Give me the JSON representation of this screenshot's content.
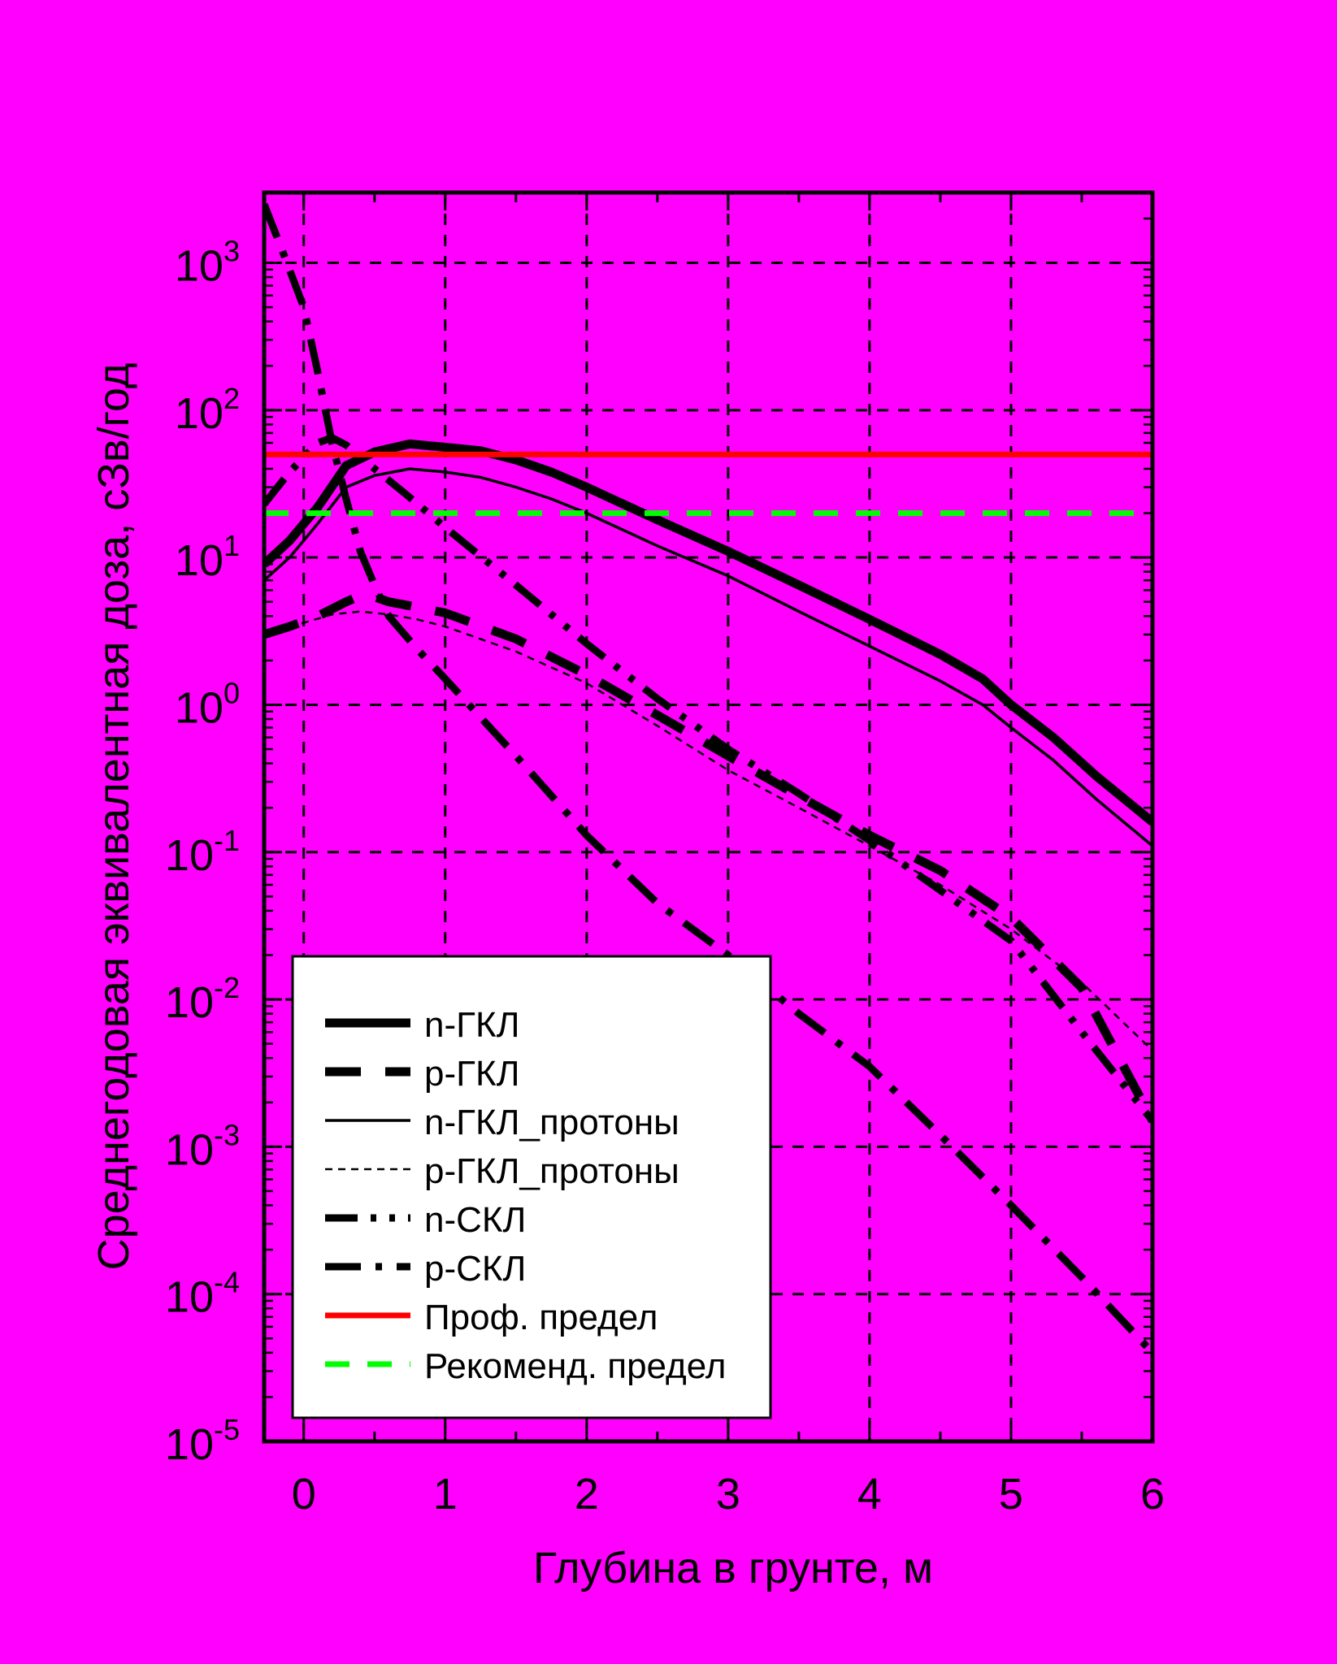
{
  "chart_data": {
    "type": "line",
    "xlabel": "Глубина в грунте, м",
    "ylabel": "Среднегодовая эквивалентная доза, сЗв/год",
    "xlim": [
      -0.28,
      6.0
    ],
    "ylim": [
      1e-05,
      3000
    ],
    "y_scale": "log",
    "x_ticks": [
      0,
      1,
      2,
      3,
      4,
      5,
      6
    ],
    "y_ticks": [
      {
        "value": 1e-05,
        "base": "10",
        "exp": "-5"
      },
      {
        "value": 0.0001,
        "base": "10",
        "exp": "-4"
      },
      {
        "value": 0.001,
        "base": "10",
        "exp": "-3"
      },
      {
        "value": 0.01,
        "base": "10",
        "exp": "-2"
      },
      {
        "value": 0.1,
        "base": "10",
        "exp": "-1"
      },
      {
        "value": 1,
        "base": "10",
        "exp": "0"
      },
      {
        "value": 10,
        "base": "10",
        "exp": "1"
      },
      {
        "value": 100,
        "base": "10",
        "exp": "2"
      },
      {
        "value": 1000,
        "base": "10",
        "exp": "3"
      }
    ],
    "grid": true,
    "legend_position": "bottom-left",
    "colors": {
      "background": "#FF00FF",
      "page": "#000000",
      "line": "#000000",
      "prof_limit": "#FF0000",
      "rec_limit": "#00FF00",
      "legend_bg": "#FFFFFF"
    },
    "series": [
      {
        "name": "n-ГКЛ",
        "style": "solid-thick",
        "color": "#000000",
        "x": [
          -0.28,
          -0.1,
          0.1,
          0.3,
          0.5,
          0.75,
          1.0,
          1.25,
          1.5,
          1.75,
          2.0,
          2.5,
          3.0,
          3.5,
          4.0,
          4.5,
          4.8,
          5.0,
          5.3,
          5.6,
          6.0
        ],
        "y": [
          9,
          13,
          22,
          42,
          52,
          59,
          56,
          53,
          46,
          38,
          30,
          18,
          11,
          6.5,
          3.8,
          2.2,
          1.5,
          1.0,
          0.6,
          0.33,
          0.16
        ]
      },
      {
        "name": "p-ГКЛ",
        "style": "dashed-thick",
        "color": "#000000",
        "x": [
          -0.28,
          -0.1,
          0.1,
          0.3,
          0.4,
          0.5,
          0.6,
          0.8,
          1.0,
          1.5,
          2.0,
          2.5,
          3.0,
          3.5,
          4.0,
          4.5,
          5.0,
          5.5,
          6.0
        ],
        "y": [
          3.0,
          3.4,
          4.0,
          5.0,
          5.5,
          5.4,
          5.0,
          4.6,
          4.2,
          2.8,
          1.6,
          0.85,
          0.45,
          0.24,
          0.13,
          0.075,
          0.036,
          0.012,
          0.0015
        ]
      },
      {
        "name": "n-ГКЛ_протоны",
        "style": "solid-thin",
        "color": "#000000",
        "x": [
          -0.28,
          -0.1,
          0.1,
          0.3,
          0.5,
          0.75,
          1.0,
          1.25,
          1.5,
          1.75,
          2.0,
          2.5,
          3.0,
          3.5,
          4.0,
          4.5,
          4.8,
          5.0,
          5.3,
          5.6,
          6.0
        ],
        "y": [
          7,
          10,
          17,
          30,
          36,
          40,
          38,
          35,
          30,
          25,
          20,
          12,
          7.5,
          4.3,
          2.5,
          1.45,
          1.0,
          0.7,
          0.42,
          0.23,
          0.11
        ]
      },
      {
        "name": "p-ГКЛ_протоны",
        "style": "dotted-thin",
        "color": "#000000",
        "x": [
          -0.28,
          0.0,
          0.2,
          0.4,
          0.6,
          0.8,
          1.0,
          1.5,
          2.0,
          2.5,
          3.0,
          3.5,
          4.0,
          4.5,
          5.0,
          5.5,
          6.0
        ],
        "y": [
          3.0,
          3.6,
          4.1,
          4.3,
          4.1,
          3.8,
          3.4,
          2.3,
          1.4,
          0.72,
          0.36,
          0.2,
          0.11,
          0.06,
          0.03,
          0.013,
          0.0045
        ]
      },
      {
        "name": "n-СКЛ",
        "style": "dash-dot-dot-thick",
        "color": "#000000",
        "x": [
          -0.28,
          -0.1,
          0.1,
          0.2,
          0.3,
          0.5,
          0.7,
          1.0,
          1.5,
          2.0,
          2.5,
          3.0,
          3.5,
          4.0,
          4.5,
          5.0,
          5.5,
          6.0
        ],
        "y": [
          23,
          38,
          60,
          65,
          58,
          40,
          28,
          16,
          6.5,
          2.6,
          1.1,
          0.5,
          0.25,
          0.12,
          0.055,
          0.025,
          0.006,
          0.0015
        ]
      },
      {
        "name": "p-СКЛ",
        "style": "dash-dot-thick",
        "color": "#000000",
        "x": [
          -0.28,
          -0.15,
          0.0,
          0.1,
          0.2,
          0.3,
          0.4,
          0.5,
          0.6,
          0.8,
          1.0,
          1.5,
          2.0,
          2.5,
          3.0,
          3.5,
          4.0,
          4.5,
          5.0,
          5.5,
          6.0
        ],
        "y": [
          2500,
          1200,
          500,
          180,
          60,
          25,
          11,
          6.5,
          4.0,
          2.4,
          1.5,
          0.45,
          0.13,
          0.045,
          0.02,
          0.008,
          0.0035,
          0.0012,
          0.0004,
          0.00013,
          4e-05
        ]
      },
      {
        "name": "Проф. предел",
        "style": "solid-red",
        "color": "#FF0000",
        "x": [
          -0.28,
          6.0
        ],
        "y": [
          50,
          50
        ]
      },
      {
        "name": "Рекоменд. предел",
        "style": "dashed-green",
        "color": "#00FF00",
        "x": [
          -0.28,
          6.0
        ],
        "y": [
          20,
          20
        ]
      }
    ]
  }
}
